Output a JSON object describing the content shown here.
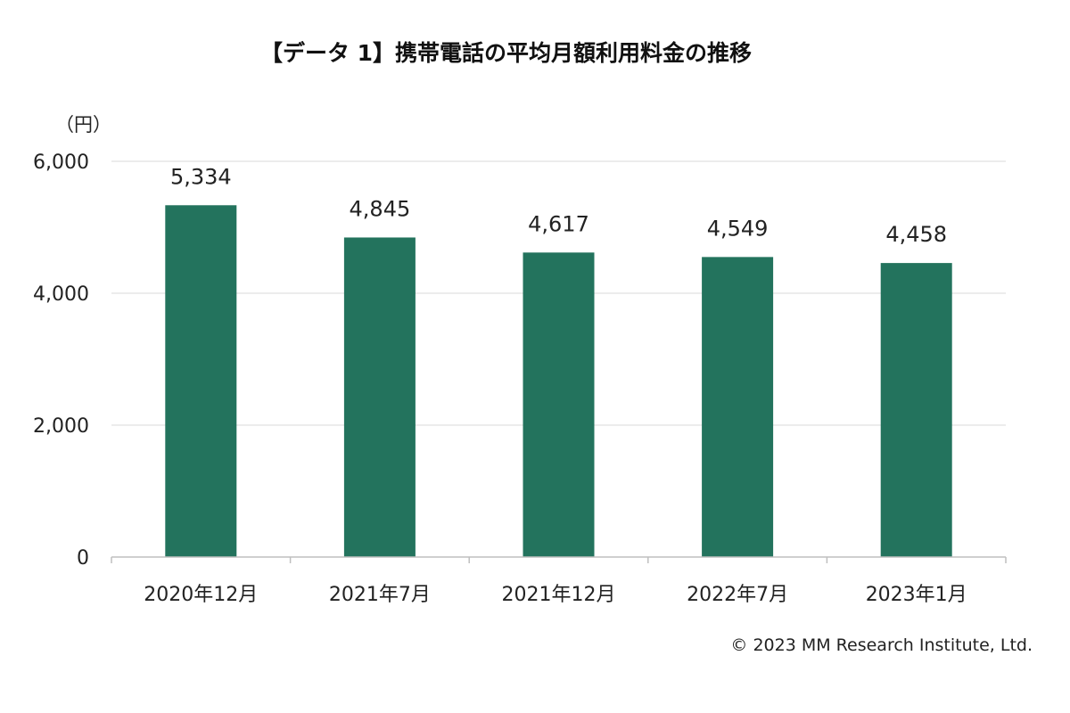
{
  "title": "【データ 1】携帯電話の平均月額利用料金の推移",
  "copyright": "© 2023 MM Research Institute, Ltd.",
  "chart_data": {
    "type": "bar",
    "title": "【データ 1】携帯電話の平均月額利用料金の推移",
    "unit": "（円）",
    "xlabel": "",
    "ylabel": "",
    "categories": [
      "2020年12月",
      "2021年7月",
      "2021年12月",
      "2022年7月",
      "2023年1月"
    ],
    "values": [
      5334,
      4845,
      4617,
      4549,
      4458
    ],
    "value_labels": [
      "5,334",
      "4,845",
      "4,617",
      "4,549",
      "4,458"
    ],
    "ylim": [
      0,
      6000
    ],
    "yticks": [
      0,
      2000,
      4000,
      6000
    ],
    "ytick_labels": [
      "0",
      "2,000",
      "4,000",
      "6,000"
    ],
    "bar_color": "#23735D",
    "grid": true,
    "legend": "none"
  }
}
